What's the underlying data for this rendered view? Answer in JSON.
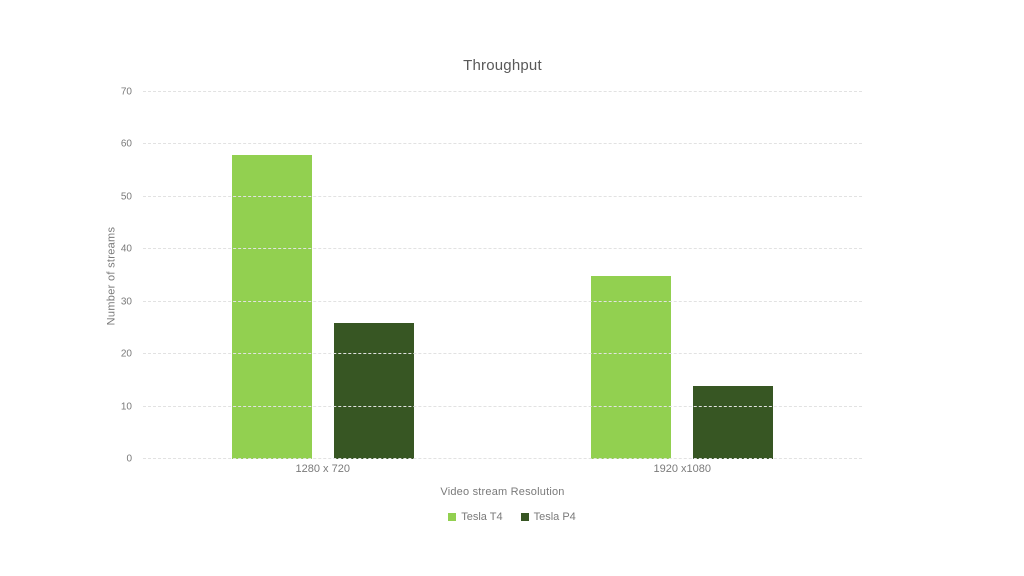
{
  "chart_data": {
    "type": "bar",
    "title": "Throughput",
    "categories": [
      "1280 x 720",
      "1920 x1080"
    ],
    "series": [
      {
        "name": "Tesla T4",
        "color": "#92d050",
        "values": [
          58,
          35
        ]
      },
      {
        "name": "Tesla P4",
        "color": "#375623",
        "values": [
          26,
          14
        ]
      }
    ],
    "xlabel": "Video stream Resolution",
    "ylabel": "Number of streams",
    "ylim": [
      0,
      70
    ],
    "yticks": [
      0,
      10,
      20,
      30,
      40,
      50,
      60,
      70
    ],
    "grid": true,
    "legend_position": "bottom",
    "colors": {
      "title_text": "#595959",
      "axis_text": "#7a7a7a",
      "gridline": "#e2e2e2",
      "background": "#ffffff"
    }
  }
}
